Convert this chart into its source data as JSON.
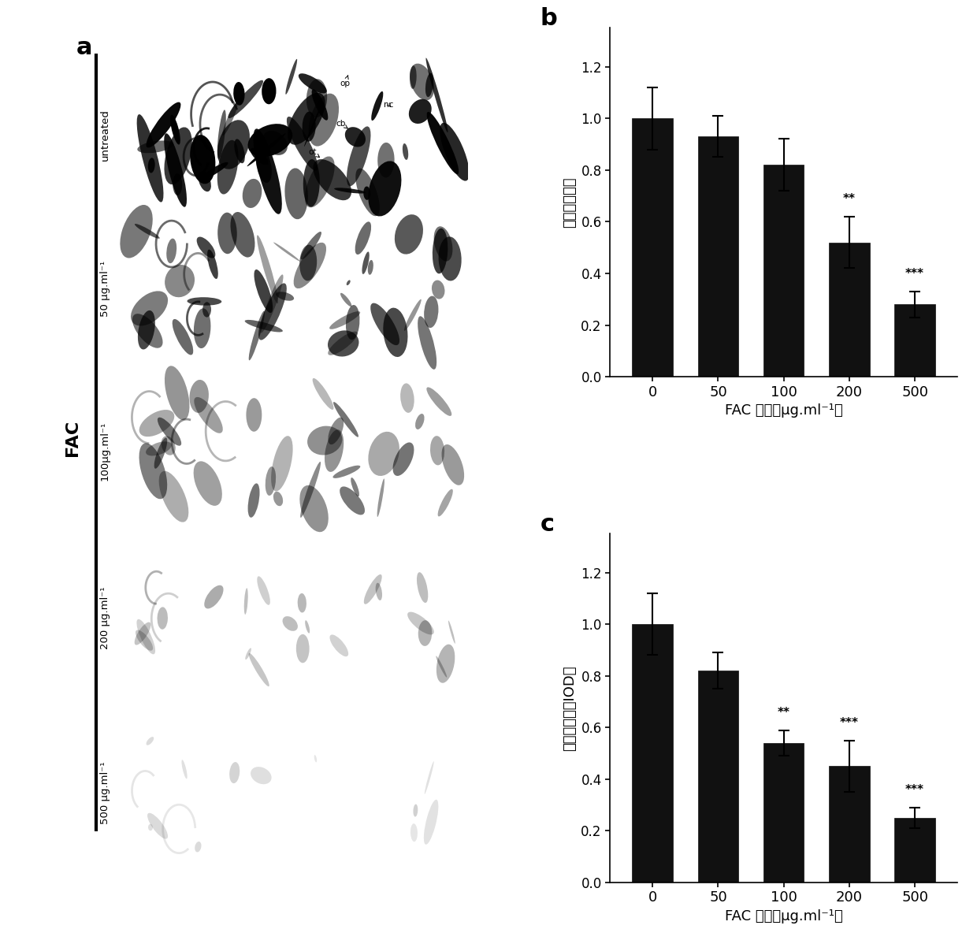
{
  "b_values": [
    1.0,
    0.93,
    0.82,
    0.52,
    0.28
  ],
  "b_errors": [
    0.12,
    0.08,
    0.1,
    0.1,
    0.05
  ],
  "b_sig": [
    "",
    "",
    "",
    "**",
    "***"
  ],
  "c_values": [
    1.0,
    0.82,
    0.54,
    0.45,
    0.25
  ],
  "c_errors": [
    0.12,
    0.07,
    0.05,
    0.1,
    0.04
  ],
  "c_sig": [
    "",
    "",
    "**",
    "***",
    "***"
  ],
  "x_labels": [
    "0",
    "50",
    "100",
    "200",
    "500"
  ],
  "b_xlabel": "FAC 浓度（μg.ml⁻¹）",
  "c_xlabel": "FAC 浓度（μg.ml⁻¹）",
  "b_ylabel": "相对矿化面积",
  "c_ylabel": "相对骨密度（IOD）",
  "b_label": "b",
  "c_label": "c",
  "a_label": "a",
  "fac_label": "FAC",
  "bar_color": "#111111",
  "ylim": [
    0,
    1.35
  ],
  "yticks": [
    0,
    0.2,
    0.4,
    0.6,
    0.8,
    1.0,
    1.2
  ],
  "left_labels": [
    "untreated",
    "50 μg.ml⁻¹",
    "100μg.ml⁻¹",
    "200 μg.ml⁻¹",
    "500 μg.ml⁻¹"
  ],
  "bg_color": "#ffffff"
}
